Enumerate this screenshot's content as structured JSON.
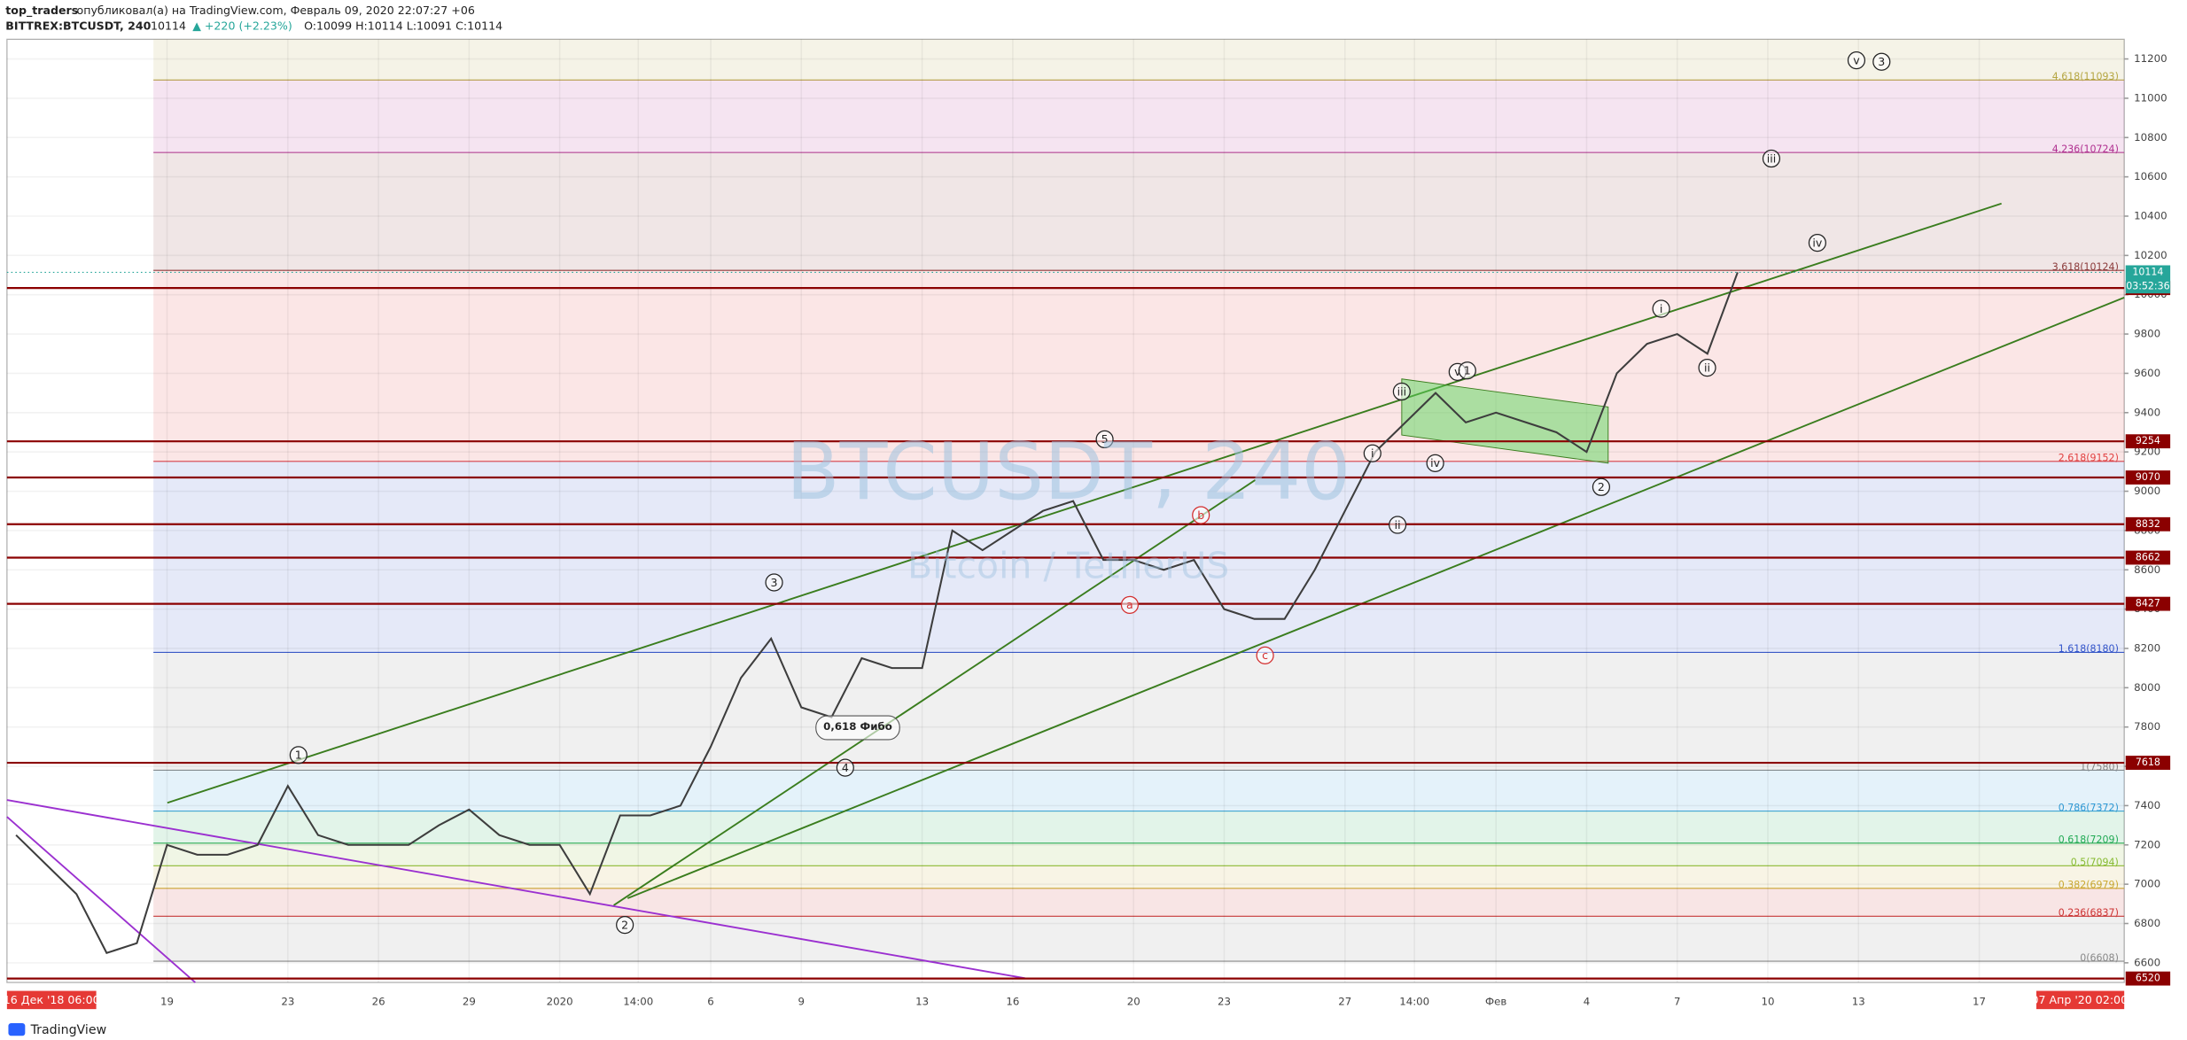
{
  "header": {
    "author": "top_traders",
    "published": "опубликовал(а) на TradingView.com, Февраль 09, 2020 22:07:27 +06",
    "symbol": "BITTREX:BTCUSDT, 240",
    "change": "▲ +220 (+2.23%)",
    "ohlc": "O:10099 H:10114 L:10091 C:10114"
  },
  "chart_data": {
    "type": "line",
    "watermark": "BTCUSDT, 240",
    "watermark_sub": "Bitcoin / TetherUS",
    "x": [
      14,
      15,
      16,
      17,
      18,
      19,
      20,
      21,
      22,
      23,
      24,
      25,
      26,
      27,
      28,
      29,
      30,
      31,
      32,
      33,
      34,
      35,
      36,
      37,
      38,
      39,
      40,
      41,
      42,
      43,
      44,
      45,
      46,
      47,
      48,
      49,
      50,
      51,
      52,
      53,
      54,
      55,
      56,
      57,
      58,
      59,
      60,
      61,
      62,
      63,
      64,
      65,
      66,
      67,
      68,
      69,
      70,
      71
    ],
    "values": [
      7250,
      7100,
      6950,
      6650,
      6700,
      7200,
      7150,
      7150,
      7200,
      7500,
      7250,
      7200,
      7200,
      7200,
      7300,
      7380,
      7250,
      7200,
      7200,
      6950,
      7350,
      7350,
      7400,
      7700,
      8050,
      8250,
      7900,
      7850,
      8150,
      8100,
      8100,
      8800,
      8700,
      8800,
      8900,
      8950,
      8650,
      8650,
      8600,
      8650,
      8400,
      8350,
      8350,
      8600,
      8900,
      9200,
      9350,
      9500,
      9350,
      9400,
      9350,
      9300,
      9200,
      9600,
      9750,
      9800,
      9700,
      10114
    ],
    "color": "#3d3d3d",
    "xlim": [
      13.7,
      83.8
    ],
    "xticks": [
      19,
      23,
      26,
      29,
      {
        "value": 32,
        "label": "2020"
      },
      {
        "value": 34.6,
        "label": "14:00"
      },
      {
        "value": 37,
        "label": "6"
      },
      {
        "value": 40,
        "label": "9"
      },
      {
        "value": 44,
        "label": "13"
      },
      {
        "value": 47,
        "label": "16"
      },
      {
        "value": 51,
        "label": "20"
      },
      {
        "value": 54,
        "label": "23"
      },
      {
        "value": 58,
        "label": "27"
      },
      {
        "value": 60.3,
        "label": "14:00"
      },
      {
        "value": 63,
        "label": "Фев"
      },
      {
        "value": 66,
        "label": "4"
      },
      {
        "value": 69,
        "label": "7"
      },
      {
        "value": 72,
        "label": "10"
      },
      {
        "value": 75,
        "label": "13"
      },
      {
        "value": 79,
        "label": "17"
      }
    ],
    "ylim": [
      6500,
      11300
    ],
    "yticks": [
      6600,
      6800,
      7000,
      7200,
      7400,
      7600,
      7800,
      8000,
      8200,
      8400,
      8600,
      8800,
      9000,
      9200,
      9400,
      9600,
      9800,
      10000,
      10200,
      10400,
      10600,
      10800,
      11000,
      11200
    ],
    "grid": true,
    "levels": [
      10034,
      9254,
      9070,
      8832,
      8662,
      8427,
      7618,
      6520
    ],
    "level_color": "#8b0000",
    "last_price": 10114,
    "countdown": "03:52:36",
    "fib_levels": [
      {
        "value": 11093,
        "label": "4.618(11093)",
        "color": "#b5a642"
      },
      {
        "value": 10724,
        "label": "4.236(10724)",
        "color": "#b03090"
      },
      {
        "value": 10124,
        "label": "3.618(10124)",
        "color": "#8b3a3a"
      },
      {
        "value": 9152,
        "label": "2.618(9152)",
        "color": "#e04040"
      },
      {
        "value": 8180,
        "label": "1.618(8180)",
        "color": "#3355cc"
      },
      {
        "value": 7580,
        "label": "1(7580)",
        "color": "#888888"
      },
      {
        "value": 7372,
        "label": "0.786(7372)",
        "color": "#2f9ad6"
      },
      {
        "value": 7209,
        "label": "0.618(7209)",
        "color": "#22aa55"
      },
      {
        "value": 7094,
        "label": "0.5(7094)",
        "color": "#88bb33"
      },
      {
        "value": 6979,
        "label": "0.382(6979)",
        "color": "#ccaa33"
      },
      {
        "value": 6837,
        "label": "0.236(6837)",
        "color": "#cc3333"
      },
      {
        "value": 6608,
        "label": "0(6608)",
        "color": "#888888"
      }
    ],
    "annotations": [
      "1",
      "2",
      "3",
      "4",
      "5",
      "a",
      "b",
      "c",
      "i",
      "ii",
      "iii",
      "iv",
      "v",
      "1",
      "2",
      "i",
      "ii",
      "iii",
      "iv",
      "v",
      "3"
    ],
    "note": "0,618 Фибо",
    "range_start": "16 Дек '18  06:00",
    "range_end": "07 Апр '20  02:00"
  },
  "footer": "TradingView"
}
